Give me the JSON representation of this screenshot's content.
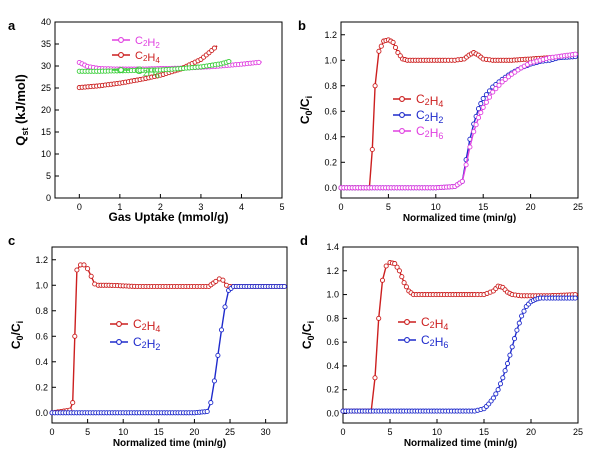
{
  "figure_colors": {
    "red": "#cc1f1f",
    "blue": "#1f2bcc",
    "magenta": "#e040e0",
    "green": "#3ccf3c"
  },
  "chart_data": [
    {
      "panel": "a",
      "type": "line",
      "xlabel": "Gas Uptake (mmol/g)",
      "ylabel": "Q_st (kJ/mol)",
      "xlim": [
        -0.6,
        5
      ],
      "ylim": [
        0,
        40
      ],
      "xticks": [
        "0",
        "1",
        "2",
        "3",
        "4",
        "5"
      ],
      "yticks": [
        "0",
        "5",
        "10",
        "15",
        "20",
        "25",
        "30",
        "35",
        "40"
      ],
      "legend": "top-left",
      "series": [
        {
          "name": "C2H2",
          "color": "magenta",
          "x": [
            0,
            0.2,
            0.5,
            1.0,
            1.5,
            2.0,
            2.5,
            3.0,
            3.5,
            4.0,
            4.5
          ],
          "y": [
            30.8,
            29.9,
            29.4,
            29.3,
            29.3,
            29.4,
            29.5,
            29.7,
            30.0,
            30.4,
            30.9
          ]
        },
        {
          "name": "C2H4",
          "color": "red",
          "x": [
            0,
            0.5,
            1.0,
            1.5,
            2.0,
            2.5,
            3.0,
            3.2,
            3.4
          ],
          "y": [
            25.1,
            25.5,
            26.1,
            26.9,
            27.9,
            29.3,
            31.5,
            33.0,
            34.6
          ]
        },
        {
          "name": "C2H6",
          "color": "green",
          "x": [
            0,
            0.5,
            1.0,
            1.5,
            2.0,
            2.5,
            3.0,
            3.5,
            3.75
          ],
          "y": [
            28.8,
            28.8,
            28.9,
            29.0,
            29.1,
            29.4,
            29.8,
            30.5,
            31.2
          ]
        }
      ]
    },
    {
      "panel": "b",
      "type": "line",
      "xlabel": "Normalized time (min/g)",
      "ylabel": "C0/Ci",
      "xlim": [
        0,
        25
      ],
      "ylim": [
        -0.08,
        1.3
      ],
      "xticks": [
        "0",
        "5",
        "10",
        "15",
        "20",
        "25"
      ],
      "yticks": [
        "0.0",
        "0.2",
        "0.4",
        "0.6",
        "0.8",
        "1.0",
        "1.2"
      ],
      "legend": "middle-right",
      "series": [
        {
          "name": "C2H4",
          "color": "red",
          "x": [
            0,
            3.0,
            3.3,
            3.6,
            4.0,
            4.5,
            5.0,
            5.5,
            6.0,
            6.5,
            7,
            9,
            11,
            12,
            13,
            13.5,
            14.0,
            14.5,
            15,
            16,
            18,
            20,
            22,
            25
          ],
          "y": [
            0,
            0,
            0.3,
            0.8,
            1.07,
            1.15,
            1.16,
            1.14,
            1.06,
            1.01,
            1.0,
            1.0,
            1.0,
            1.0,
            1.01,
            1.04,
            1.06,
            1.04,
            1.01,
            1.0,
            1.0,
            1.01,
            1.02,
            1.03
          ]
        },
        {
          "name": "C2H2",
          "color": "blue",
          "x": [
            0,
            5,
            10,
            12,
            12.8,
            13.2,
            13.6,
            14.0,
            14.5,
            15,
            16,
            17,
            18,
            19,
            20,
            21,
            22,
            23,
            25
          ],
          "y": [
            0,
            0,
            0,
            0.01,
            0.05,
            0.22,
            0.38,
            0.5,
            0.62,
            0.7,
            0.79,
            0.85,
            0.9,
            0.94,
            0.97,
            0.99,
            1.0,
            1.02,
            1.03
          ]
        },
        {
          "name": "C2H6",
          "color": "magenta",
          "x": [
            0,
            5,
            10,
            12,
            12.8,
            13.2,
            13.6,
            14.0,
            14.5,
            15,
            16,
            17,
            18,
            19,
            20,
            21,
            22,
            23,
            25
          ],
          "y": [
            0,
            0,
            0,
            0.01,
            0.05,
            0.18,
            0.32,
            0.44,
            0.55,
            0.63,
            0.75,
            0.83,
            0.89,
            0.94,
            0.98,
            1.0,
            1.02,
            1.03,
            1.05
          ]
        }
      ]
    },
    {
      "panel": "c",
      "type": "line",
      "xlabel": "Normalized time (min/g)",
      "ylabel": "C0/Ci",
      "xlim": [
        0,
        33
      ],
      "ylim": [
        -0.08,
        1.3
      ],
      "xticks": [
        "0",
        "5",
        "10",
        "15",
        "20",
        "25",
        "30"
      ],
      "yticks": [
        "0.0",
        "0.2",
        "0.4",
        "0.6",
        "0.8",
        "1.0",
        "1.2"
      ],
      "legend": "middle-center",
      "series": [
        {
          "name": "C2H4",
          "color": "red",
          "x": [
            0,
            2.5,
            2.9,
            3.2,
            3.5,
            4.0,
            4.5,
            5.0,
            5.5,
            6.0,
            6.5,
            8,
            12,
            16,
            20,
            22,
            23,
            23.5,
            24,
            24.5,
            25,
            27,
            30,
            33
          ],
          "y": [
            0,
            0.02,
            0.08,
            0.6,
            1.12,
            1.16,
            1.16,
            1.13,
            1.07,
            1.01,
            1.0,
            1.0,
            0.99,
            0.99,
            0.99,
            0.99,
            1.03,
            1.05,
            1.04,
            1.0,
            0.99,
            0.99,
            0.99,
            0.99
          ]
        },
        {
          "name": "C2H2",
          "color": "blue",
          "x": [
            0,
            5,
            10,
            15,
            20,
            21.8,
            22.3,
            22.8,
            23.3,
            23.8,
            24.3,
            24.8,
            25.5,
            27,
            30,
            33
          ],
          "y": [
            0,
            0,
            0,
            0,
            0,
            0.01,
            0.08,
            0.25,
            0.45,
            0.65,
            0.83,
            0.96,
            0.99,
            0.99,
            0.99,
            0.99
          ]
        }
      ]
    },
    {
      "panel": "d",
      "type": "line",
      "xlabel": "Normalized time (min/g)",
      "ylabel": "C0/Ci",
      "xlim": [
        0,
        25
      ],
      "ylim": [
        -0.08,
        1.4
      ],
      "xticks": [
        "0",
        "5",
        "10",
        "15",
        "20",
        "25"
      ],
      "yticks": [
        "0.0",
        "0.2",
        "0.4",
        "0.6",
        "0.8",
        "1.0",
        "1.2",
        "1.4"
      ],
      "legend": "middle-center",
      "series": [
        {
          "name": "C2H4",
          "color": "red",
          "x": [
            0,
            3.0,
            3.4,
            3.8,
            4.2,
            4.6,
            5.0,
            5.5,
            6.0,
            6.5,
            7.0,
            7.5,
            9,
            12,
            14,
            15,
            16,
            16.5,
            17.0,
            17.5,
            18,
            19,
            22,
            25
          ],
          "y": [
            0.02,
            0.02,
            0.3,
            0.8,
            1.12,
            1.24,
            1.27,
            1.26,
            1.2,
            1.1,
            1.03,
            1.0,
            1.0,
            1.0,
            1.0,
            1.0,
            1.03,
            1.07,
            1.06,
            1.02,
            1.0,
            0.99,
            0.99,
            1.0
          ]
        },
        {
          "name": "C2H6",
          "color": "blue",
          "x": [
            0,
            5,
            10,
            14,
            15,
            15.5,
            16,
            16.5,
            17,
            17.5,
            18,
            18.5,
            19,
            19.5,
            20,
            20.5,
            21,
            22,
            25
          ],
          "y": [
            0.02,
            0.02,
            0.02,
            0.02,
            0.04,
            0.08,
            0.13,
            0.2,
            0.3,
            0.42,
            0.56,
            0.7,
            0.82,
            0.9,
            0.94,
            0.96,
            0.97,
            0.97,
            0.97
          ]
        }
      ]
    }
  ]
}
